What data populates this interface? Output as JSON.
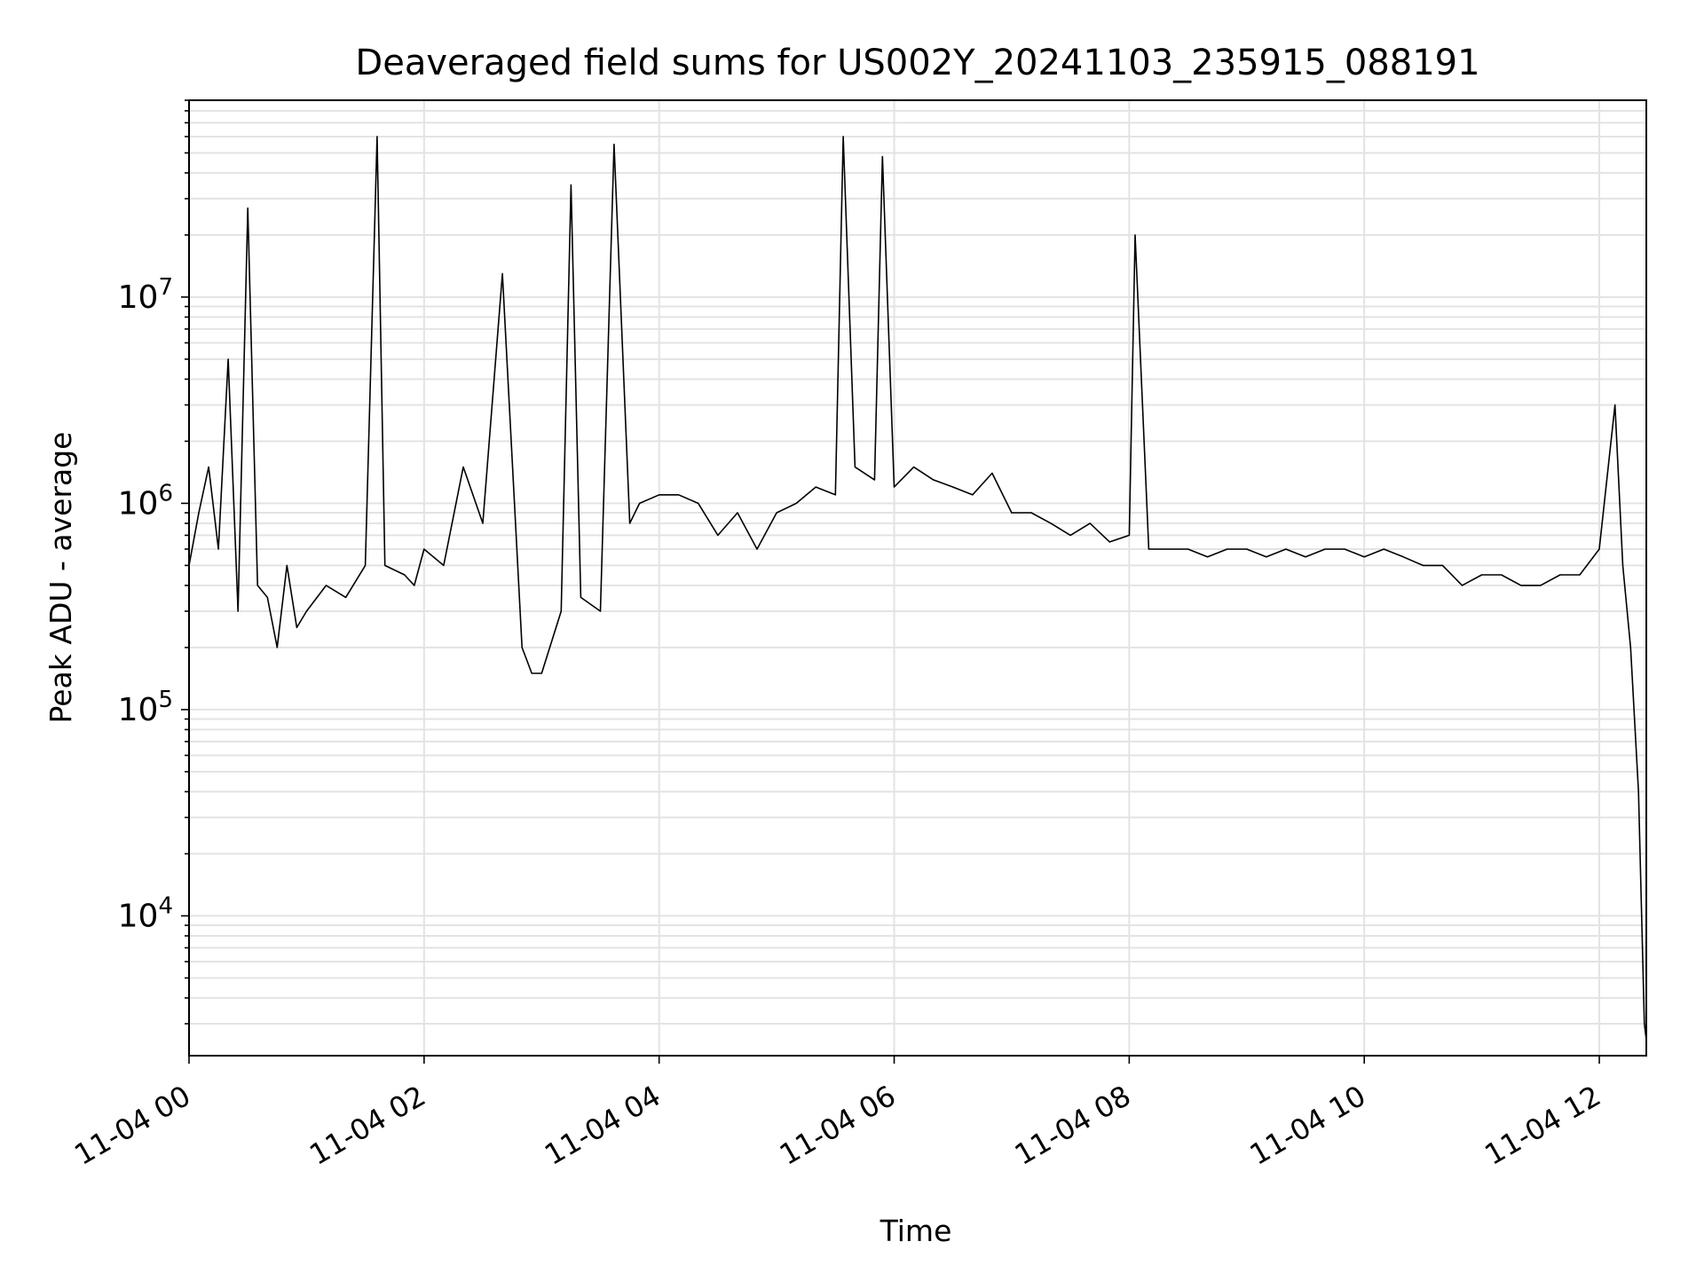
{
  "chart_data": {
    "type": "line",
    "title": "Deaveraged field sums for US002Y_20241103_235915_088191",
    "xlabel": "Time",
    "ylabel": "Peak ADU - average",
    "x_axis": {
      "kind": "datetime",
      "range": [
        "2024-11-04T00:00",
        "2024-11-04T12:24"
      ],
      "ticks": [
        {
          "value": "2024-11-04T00:00",
          "label": "11-04 00"
        },
        {
          "value": "2024-11-04T02:00",
          "label": "11-04 02"
        },
        {
          "value": "2024-11-04T04:00",
          "label": "11-04 04"
        },
        {
          "value": "2024-11-04T06:00",
          "label": "11-04 06"
        },
        {
          "value": "2024-11-04T08:00",
          "label": "11-04 08"
        },
        {
          "value": "2024-11-04T10:00",
          "label": "11-04 10"
        },
        {
          "value": "2024-11-04T12:00",
          "label": "11-04 12"
        }
      ]
    },
    "y_axis": {
      "scale": "log",
      "range": [
        2100,
        90000000
      ],
      "ticks": [
        {
          "value": 10000,
          "base": "10",
          "exp": "4"
        },
        {
          "value": 100000,
          "base": "10",
          "exp": "5"
        },
        {
          "value": 1000000,
          "base": "10",
          "exp": "6"
        },
        {
          "value": 10000000,
          "base": "10",
          "exp": "7"
        }
      ]
    },
    "grid": true,
    "line_color": "#000000",
    "series": [
      {
        "x": [
          "2024-11-04T00:00",
          "2024-11-04T00:05",
          "2024-11-04T00:10",
          "2024-11-04T00:15",
          "2024-11-04T00:20",
          "2024-11-04T00:25",
          "2024-11-04T00:30",
          "2024-11-04T00:35",
          "2024-11-04T00:40",
          "2024-11-04T00:45",
          "2024-11-04T00:50",
          "2024-11-04T00:55",
          "2024-11-04T01:00",
          "2024-11-04T01:10",
          "2024-11-04T01:20",
          "2024-11-04T01:30",
          "2024-11-04T01:36",
          "2024-11-04T01:40",
          "2024-11-04T01:50",
          "2024-11-04T01:55",
          "2024-11-04T02:00",
          "2024-11-04T02:10",
          "2024-11-04T02:20",
          "2024-11-04T02:30",
          "2024-11-04T02:40",
          "2024-11-04T02:50",
          "2024-11-04T02:55",
          "2024-11-04T03:00",
          "2024-11-04T03:10",
          "2024-11-04T03:15",
          "2024-11-04T03:20",
          "2024-11-04T03:30",
          "2024-11-04T03:37",
          "2024-11-04T03:45",
          "2024-11-04T03:50",
          "2024-11-04T04:00",
          "2024-11-04T04:10",
          "2024-11-04T04:20",
          "2024-11-04T04:30",
          "2024-11-04T04:40",
          "2024-11-04T04:50",
          "2024-11-04T05:00",
          "2024-11-04T05:10",
          "2024-11-04T05:20",
          "2024-11-04T05:30",
          "2024-11-04T05:34",
          "2024-11-04T05:40",
          "2024-11-04T05:50",
          "2024-11-04T05:54",
          "2024-11-04T06:00",
          "2024-11-04T06:10",
          "2024-11-04T06:20",
          "2024-11-04T06:30",
          "2024-11-04T06:40",
          "2024-11-04T06:50",
          "2024-11-04T07:00",
          "2024-11-04T07:10",
          "2024-11-04T07:20",
          "2024-11-04T07:30",
          "2024-11-04T07:40",
          "2024-11-04T07:50",
          "2024-11-04T08:00",
          "2024-11-04T08:03",
          "2024-11-04T08:10",
          "2024-11-04T08:20",
          "2024-11-04T08:30",
          "2024-11-04T08:40",
          "2024-11-04T08:50",
          "2024-11-04T09:00",
          "2024-11-04T09:10",
          "2024-11-04T09:20",
          "2024-11-04T09:30",
          "2024-11-04T09:40",
          "2024-11-04T09:50",
          "2024-11-04T10:00",
          "2024-11-04T10:10",
          "2024-11-04T10:20",
          "2024-11-04T10:30",
          "2024-11-04T10:40",
          "2024-11-04T10:50",
          "2024-11-04T11:00",
          "2024-11-04T11:10",
          "2024-11-04T11:20",
          "2024-11-04T11:30",
          "2024-11-04T11:40",
          "2024-11-04T11:50",
          "2024-11-04T12:00",
          "2024-11-04T12:08",
          "2024-11-04T12:12",
          "2024-11-04T12:16",
          "2024-11-04T12:20",
          "2024-11-04T12:23",
          "2024-11-04T12:24"
        ],
        "y": [
          500000,
          900000,
          1500000,
          600000,
          5000000,
          300000,
          27000000,
          400000,
          350000,
          200000,
          500000,
          250000,
          300000,
          400000,
          350000,
          500000,
          60000000,
          500000,
          450000,
          400000,
          600000,
          500000,
          1500000,
          800000,
          13000000,
          200000,
          150000,
          150000,
          300000,
          35000000,
          350000,
          300000,
          55000000,
          800000,
          1000000,
          1100000,
          1100000,
          1000000,
          700000,
          900000,
          600000,
          900000,
          1000000,
          1200000,
          1100000,
          60000000,
          1500000,
          1300000,
          48000000,
          1200000,
          1500000,
          1300000,
          1200000,
          1100000,
          1400000,
          900000,
          900000,
          800000,
          700000,
          800000,
          650000,
          700000,
          20000000,
          600000,
          600000,
          600000,
          550000,
          600000,
          600000,
          550000,
          600000,
          550000,
          600000,
          600000,
          550000,
          600000,
          550000,
          500000,
          500000,
          400000,
          450000,
          450000,
          400000,
          400000,
          450000,
          450000,
          600000,
          3000000,
          500000,
          200000,
          40000,
          3000,
          2500
        ]
      }
    ]
  }
}
